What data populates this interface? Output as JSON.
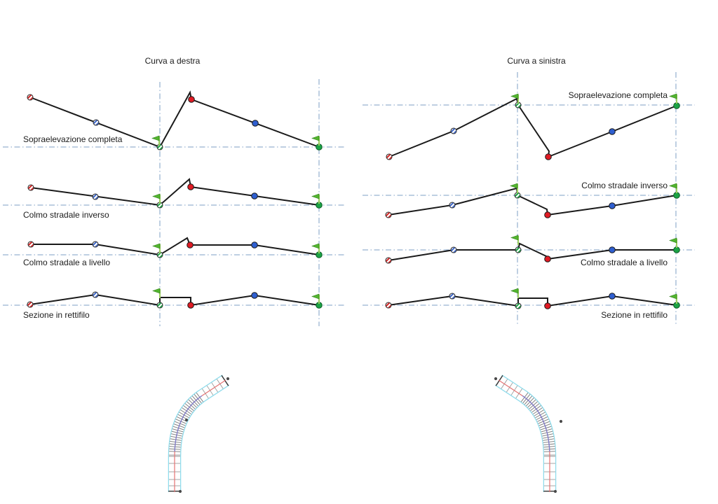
{
  "panels": {
    "left": {
      "title": "Curva a destra",
      "section_labels": [
        "Sopraelevazione completa",
        "Colmo stradale inverso",
        "Colmo stradale a livello",
        "Sezione in rettifilo"
      ]
    },
    "right": {
      "title": "Curva a sinistra",
      "section_labels": [
        "Sopraelevazione completa",
        "Colmo stradale inverso",
        "Colmo stradale a livello",
        "Sezione in rettifilo"
      ]
    }
  },
  "legend": {
    "marker_kinds": [
      "start-red-striped-circle",
      "blue-striped-circle",
      "center-green-striped-circle",
      "red-dot",
      "blue-dot",
      "green-dot",
      "green-flag"
    ]
  },
  "colors": {
    "guide_line": "#7e9fc6",
    "profile_line": "#1a1a1a",
    "marker_red": "#d42a2a",
    "marker_blue": "#2f5fd0",
    "marker_green": "#1ca345",
    "flag_green": "#53b52f",
    "road_edge": "#8fdcec",
    "road_centerline_tangent": "#e57373",
    "road_centerline_curve": "#7b7fd0",
    "road_tick": "#777777"
  }
}
